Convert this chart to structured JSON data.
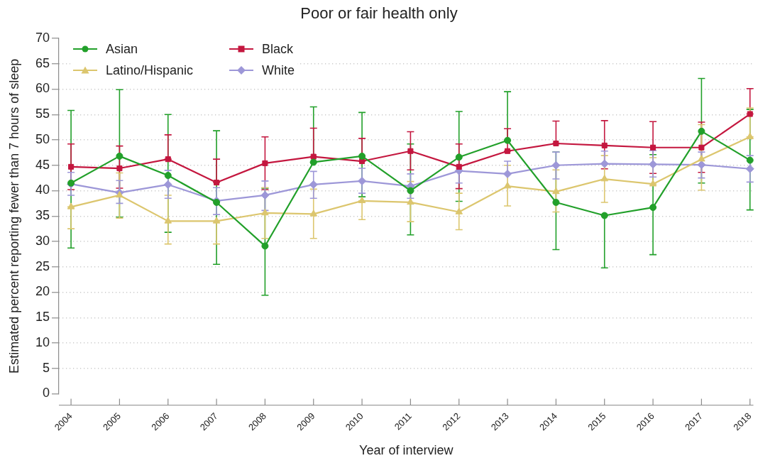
{
  "chart_data": {
    "type": "line",
    "title": "Poor or fair health only",
    "xlabel": "Year of interview",
    "ylabel": "Estimated percent reporting fewer than 7 hours of sleep",
    "x": [
      2004,
      2005,
      2006,
      2007,
      2008,
      2009,
      2010,
      2011,
      2012,
      2013,
      2014,
      2015,
      2016,
      2017,
      2018
    ],
    "xlim": [
      2003.75,
      2018.07
    ],
    "xticks": [
      2004,
      2005,
      2006,
      2007,
      2008,
      2009,
      2010,
      2011,
      2012,
      2013,
      2014,
      2015,
      2016,
      2017,
      2018
    ],
    "ylim": [
      0,
      70
    ],
    "yticks": [
      0,
      5,
      10,
      15,
      20,
      25,
      30,
      35,
      40,
      45,
      50,
      55,
      60,
      65,
      70
    ],
    "grid": "y",
    "legend": "top left",
    "line_style": "solid",
    "series": [
      {
        "name": "Asian",
        "color": "#22a02a",
        "marker": "circle",
        "values": [
          41.5,
          46.8,
          43.0,
          37.7,
          29.1,
          45.6,
          46.8,
          40.0,
          46.6,
          49.9,
          37.7,
          35.1,
          36.7,
          51.7,
          46.0
        ],
        "errors": [
          [
            28.7,
            55.8
          ],
          [
            34.8,
            59.9
          ],
          [
            31.8,
            55.0
          ],
          [
            25.5,
            51.8
          ],
          [
            19.4,
            40.5
          ],
          [
            45.6,
            56.5
          ],
          [
            38.8,
            55.4
          ],
          [
            31.3,
            49.2
          ],
          [
            37.9,
            55.6
          ],
          [
            49.9,
            59.5
          ],
          [
            28.4,
            47.6
          ],
          [
            24.8,
            35.1
          ],
          [
            27.4,
            47.1
          ],
          [
            41.5,
            62.1
          ],
          [
            36.2,
            56.0
          ]
        ]
      },
      {
        "name": "Black",
        "color": "#c4173f",
        "marker": "square",
        "values": [
          44.7,
          44.4,
          46.2,
          41.6,
          45.4,
          46.7,
          45.8,
          47.8,
          44.7,
          47.8,
          49.3,
          48.9,
          48.5,
          48.5,
          55.1
        ],
        "errors": [
          [
            40.2,
            49.2
          ],
          [
            40.5,
            48.8
          ],
          [
            46.2,
            51.0
          ],
          [
            41.6,
            46.2
          ],
          [
            40.2,
            50.6
          ],
          [
            46.7,
            52.3
          ],
          [
            45.8,
            50.3
          ],
          [
            44.1,
            51.6
          ],
          [
            40.4,
            49.2
          ],
          [
            47.8,
            52.2
          ],
          [
            49.3,
            53.7
          ],
          [
            44.3,
            53.8
          ],
          [
            43.4,
            53.6
          ],
          [
            43.6,
            53.5
          ],
          [
            55.1,
            60.1
          ]
        ]
      },
      {
        "name": "Latino/Hispanic",
        "color": "#dcc66e",
        "marker": "triangle",
        "values": [
          36.8,
          39.1,
          34.0,
          34.0,
          35.6,
          35.4,
          38.0,
          37.7,
          35.8,
          40.9,
          39.8,
          42.3,
          41.3,
          46.2,
          50.6
        ],
        "errors": [
          [
            32.5,
            36.8
          ],
          [
            34.6,
            43.5
          ],
          [
            29.5,
            39.1
          ],
          [
            29.5,
            34.0
          ],
          [
            30.6,
            40.6
          ],
          [
            30.6,
            40.3
          ],
          [
            34.3,
            38.0
          ],
          [
            33.9,
            41.8
          ],
          [
            32.3,
            39.5
          ],
          [
            37.0,
            45.0
          ],
          [
            35.8,
            44.1
          ],
          [
            37.7,
            46.9
          ],
          [
            41.3,
            46.5
          ],
          [
            40.1,
            53.0
          ],
          [
            50.6,
            56.3
          ]
        ]
      },
      {
        "name": "White",
        "color": "#9d97d8",
        "marker": "diamond",
        "values": [
          41.3,
          39.6,
          41.2,
          38.0,
          39.1,
          41.2,
          41.9,
          40.9,
          43.9,
          43.3,
          45.0,
          45.3,
          45.2,
          45.1,
          44.3
        ],
        "errors": [
          [
            39.1,
            43.6
          ],
          [
            37.5,
            42.0
          ],
          [
            38.5,
            44.0
          ],
          [
            35.3,
            40.6
          ],
          [
            36.1,
            41.9
          ],
          [
            38.5,
            43.8
          ],
          [
            39.5,
            44.4
          ],
          [
            38.5,
            43.3
          ],
          [
            41.5,
            43.9
          ],
          [
            43.3,
            45.8
          ],
          [
            42.3,
            47.6
          ],
          [
            45.3,
            47.8
          ],
          [
            42.7,
            47.9
          ],
          [
            42.5,
            47.6
          ],
          [
            41.7,
            46.9
          ]
        ]
      }
    ]
  }
}
